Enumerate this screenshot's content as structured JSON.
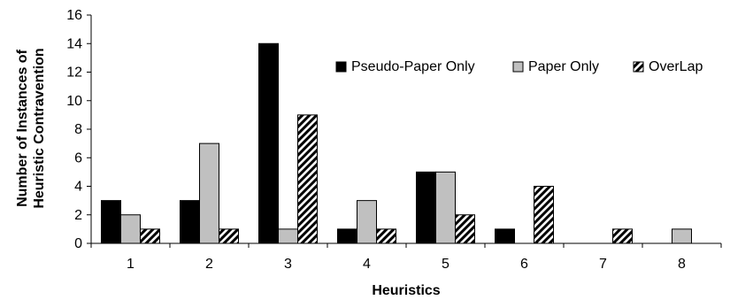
{
  "chart_data": {
    "type": "bar",
    "categories": [
      "1",
      "2",
      "3",
      "4",
      "5",
      "6",
      "7",
      "8"
    ],
    "series": [
      {
        "name": "Pseudo-Paper Only",
        "values": [
          3,
          3,
          14,
          1,
          5,
          1,
          0,
          0
        ],
        "fill": "#000000",
        "pattern": "solid"
      },
      {
        "name": "Paper Only",
        "values": [
          2,
          7,
          1,
          3,
          5,
          0,
          0,
          1
        ],
        "fill": "#c0c0c0",
        "pattern": "solid"
      },
      {
        "name": "OverLap",
        "values": [
          1,
          1,
          9,
          1,
          2,
          4,
          1,
          0
        ],
        "fill": "#ffffff",
        "pattern": "diagonal-hatch"
      }
    ],
    "title": "",
    "xlabel": "Heuristics",
    "ylabel_lines": [
      "Number of Instances of",
      "Heuristic Contravention"
    ],
    "ylim": [
      0,
      16
    ],
    "yticks": [
      0,
      2,
      4,
      6,
      8,
      10,
      12,
      14,
      16
    ],
    "grid": false,
    "legend_position": "top-right"
  }
}
